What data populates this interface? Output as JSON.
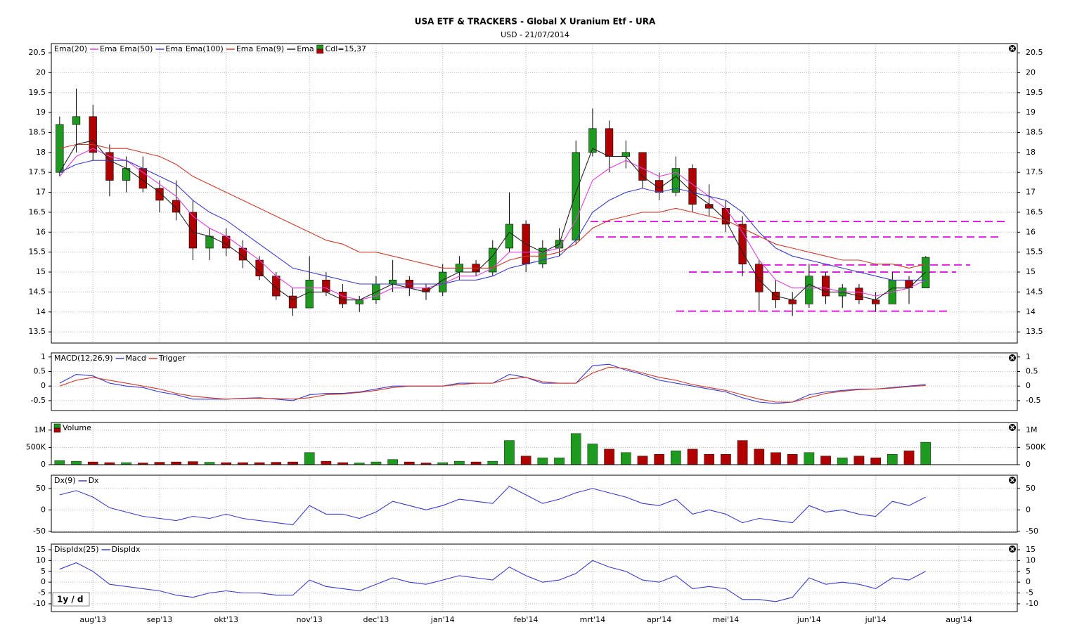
{
  "title": "USA ETF & TRACKERS - Global X Uranium Etf - URA",
  "subtitle": "USD - 21/07/2014",
  "period": "1y / d",
  "chart_data": [
    {
      "type": "candlestick",
      "categories": [
        null,
        null,
        "aug'13",
        null,
        null,
        null,
        "sep'13",
        null,
        null,
        null,
        "okt'13",
        null,
        null,
        null,
        null,
        "nov'13",
        null,
        null,
        null,
        "dec'13",
        null,
        null,
        null,
        "jan'14",
        null,
        null,
        null,
        null,
        "feb'14",
        null,
        null,
        null,
        "mrt'14",
        null,
        null,
        null,
        "apr'14",
        null,
        null,
        null,
        "mei'14",
        null,
        null,
        null,
        null,
        "jun'14",
        null,
        null,
        null,
        "jul'14",
        null,
        null,
        null,
        null,
        "aug'14",
        null,
        null,
        null
      ],
      "ylim": [
        13.22,
        20.73
      ],
      "yticks": [
        13.5,
        14,
        14.5,
        15,
        15.5,
        16,
        16.5,
        17,
        17.5,
        18,
        18.5,
        19,
        19.5,
        20,
        20.5
      ],
      "grid": true,
      "up_color": "#1e9a1e",
      "down_color": "#b00000",
      "levels": [
        16.27,
        15.88,
        15.18,
        15.0,
        14.02
      ],
      "level_color": "#e020e0",
      "ohlc": {
        "name": "Cdl=15,37",
        "open": [
          17.5,
          18.7,
          18.9,
          18.0,
          17.3,
          17.6,
          17.1,
          16.8,
          16.5,
          15.6,
          15.9,
          15.6,
          15.3,
          14.9,
          14.4,
          14.1,
          14.8,
          14.5,
          14.2,
          14.3,
          14.7,
          14.8,
          14.6,
          14.5,
          15.0,
          15.2,
          15.0,
          15.6,
          16.2,
          15.2,
          15.6,
          15.8,
          18.0,
          18.6,
          17.9,
          18.0,
          17.3,
          17.0,
          17.6,
          16.7,
          16.6,
          16.2,
          15.2,
          14.5,
          14.3,
          14.2,
          14.9,
          14.4,
          14.6,
          14.3,
          14.2,
          14.8,
          14.6,
          null,
          null,
          null,
          null,
          null
        ],
        "high": [
          18.9,
          19.6,
          19.2,
          18.2,
          17.9,
          17.9,
          17.3,
          17.3,
          16.8,
          16.1,
          16.1,
          15.8,
          15.4,
          15.0,
          14.6,
          15.4,
          15.0,
          14.7,
          14.4,
          14.9,
          15.3,
          14.9,
          14.7,
          15.2,
          15.4,
          15.3,
          15.8,
          17.0,
          16.3,
          15.8,
          16.1,
          18.3,
          19.1,
          18.8,
          18.3,
          18.0,
          17.5,
          17.9,
          17.7,
          17.2,
          16.8,
          16.4,
          15.3,
          14.8,
          14.5,
          15.2,
          15.0,
          14.7,
          14.7,
          14.5,
          15.0,
          14.9,
          15.4,
          null,
          null,
          null,
          null,
          null
        ],
        "low": [
          17.4,
          18.0,
          17.8,
          16.9,
          17.0,
          17.0,
          16.5,
          16.3,
          15.3,
          15.3,
          15.4,
          15.1,
          14.8,
          14.3,
          13.9,
          14.1,
          14.4,
          14.1,
          14.0,
          14.2,
          14.5,
          14.4,
          14.3,
          14.4,
          14.8,
          14.9,
          14.9,
          15.5,
          15.0,
          15.1,
          15.4,
          15.7,
          17.9,
          17.5,
          17.6,
          17.1,
          16.8,
          16.9,
          16.5,
          16.4,
          16.0,
          14.9,
          14.0,
          14.1,
          13.9,
          14.1,
          14.2,
          14.1,
          14.2,
          14.0,
          14.2,
          14.2,
          14.6,
          null,
          null,
          null,
          null,
          null
        ],
        "close": [
          18.7,
          18.9,
          18.0,
          17.3,
          17.6,
          17.1,
          16.8,
          16.5,
          15.6,
          15.9,
          15.6,
          15.3,
          14.9,
          14.4,
          14.1,
          14.8,
          14.5,
          14.2,
          14.3,
          14.7,
          14.8,
          14.6,
          14.5,
          15.0,
          15.2,
          15.0,
          15.6,
          16.2,
          15.2,
          15.6,
          15.8,
          18.0,
          18.6,
          17.9,
          18.0,
          17.3,
          17.0,
          17.6,
          16.7,
          16.6,
          16.2,
          15.2,
          14.5,
          14.3,
          14.2,
          14.9,
          14.4,
          14.6,
          14.3,
          14.2,
          14.8,
          14.6,
          15.37,
          null,
          null,
          null,
          null,
          null
        ]
      },
      "series": [
        {
          "label": "Ema(20)",
          "name": "Ema",
          "color": "#e040e0",
          "values": [
            17.4,
            17.9,
            18.1,
            17.9,
            17.8,
            17.5,
            17.2,
            16.9,
            16.4,
            16.1,
            15.9,
            15.6,
            15.3,
            14.9,
            14.6,
            14.6,
            14.6,
            14.4,
            14.3,
            14.4,
            14.6,
            14.6,
            14.6,
            14.7,
            14.9,
            14.9,
            15.1,
            15.5,
            15.5,
            15.5,
            15.6,
            16.3,
            17.3,
            17.6,
            17.8,
            17.6,
            17.4,
            17.5,
            17.2,
            16.9,
            16.6,
            16.0,
            15.3,
            14.8,
            14.6,
            14.6,
            14.6,
            14.5,
            14.5,
            14.4,
            14.5,
            14.6,
            14.8,
            null,
            null,
            null,
            null,
            null
          ]
        },
        {
          "label": "Ema(50)",
          "name": "Ema",
          "color": "#3a3ad0",
          "values": [
            17.5,
            17.7,
            17.8,
            17.8,
            17.8,
            17.6,
            17.4,
            17.2,
            16.8,
            16.5,
            16.3,
            16.0,
            15.7,
            15.4,
            15.1,
            15.0,
            14.9,
            14.8,
            14.7,
            14.7,
            14.7,
            14.7,
            14.7,
            14.7,
            14.8,
            14.8,
            14.9,
            15.1,
            15.2,
            15.3,
            15.4,
            15.8,
            16.5,
            16.8,
            17.0,
            17.1,
            17.0,
            17.1,
            17.0,
            16.9,
            16.8,
            16.5,
            16.0,
            15.6,
            15.4,
            15.3,
            15.2,
            15.1,
            15.0,
            14.9,
            14.8,
            14.8,
            14.8,
            null,
            null,
            null,
            null,
            null
          ]
        },
        {
          "label": "Ema(100)",
          "name": "Ema",
          "color": "#d03a2a",
          "values": [
            18.1,
            18.2,
            18.2,
            18.1,
            18.1,
            18.0,
            17.9,
            17.7,
            17.4,
            17.2,
            17.0,
            16.8,
            16.6,
            16.4,
            16.2,
            16.0,
            15.8,
            15.7,
            15.5,
            15.5,
            15.4,
            15.3,
            15.2,
            15.1,
            15.1,
            15.1,
            15.1,
            15.3,
            15.4,
            15.4,
            15.5,
            15.7,
            16.1,
            16.3,
            16.4,
            16.5,
            16.5,
            16.6,
            16.5,
            16.4,
            16.3,
            16.1,
            15.9,
            15.7,
            15.6,
            15.5,
            15.4,
            15.3,
            15.3,
            15.2,
            15.2,
            15.1,
            15.2,
            null,
            null,
            null,
            null,
            null
          ]
        },
        {
          "label": "Ema(9)",
          "name": "Ema",
          "color": "#222222",
          "values": [
            17.5,
            18.2,
            18.3,
            17.8,
            17.6,
            17.3,
            17.0,
            16.6,
            16.0,
            15.9,
            15.7,
            15.4,
            15.0,
            14.6,
            14.3,
            14.5,
            14.5,
            14.3,
            14.3,
            14.5,
            14.7,
            14.6,
            14.5,
            14.8,
            15.0,
            15.0,
            15.4,
            16.0,
            15.7,
            15.5,
            15.7,
            17.0,
            18.1,
            17.9,
            17.9,
            17.4,
            17.1,
            17.4,
            17.0,
            16.7,
            16.3,
            15.5,
            14.8,
            14.4,
            14.3,
            14.7,
            14.5,
            14.5,
            14.4,
            14.3,
            14.6,
            14.6,
            15.0,
            null,
            null,
            null,
            null,
            null
          ]
        }
      ]
    },
    {
      "type": "line",
      "label": "MACD(12,26,9)",
      "ylim": [
        -0.84,
        1.14
      ],
      "yticks": [
        -0.5,
        0,
        0.5,
        1
      ],
      "grid": true,
      "series": [
        {
          "name": "Macd",
          "color": "#3a3ad0",
          "values": [
            0.1,
            0.4,
            0.35,
            0.1,
            0.0,
            -0.05,
            -0.2,
            -0.3,
            -0.45,
            -0.45,
            -0.45,
            -0.42,
            -0.4,
            -0.45,
            -0.5,
            -0.3,
            -0.25,
            -0.25,
            -0.2,
            -0.1,
            0.0,
            0.0,
            0.0,
            0.0,
            0.1,
            0.1,
            0.1,
            0.4,
            0.3,
            0.1,
            0.1,
            0.1,
            0.7,
            0.75,
            0.55,
            0.4,
            0.2,
            0.1,
            0.0,
            -0.1,
            -0.2,
            -0.4,
            -0.55,
            -0.6,
            -0.55,
            -0.3,
            -0.2,
            -0.15,
            -0.1,
            -0.1,
            -0.05,
            0.0,
            0.05,
            null,
            null,
            null,
            null,
            null
          ]
        },
        {
          "name": "Trigger",
          "color": "#d03a2a",
          "values": [
            0.0,
            0.2,
            0.3,
            0.2,
            0.1,
            0.0,
            -0.1,
            -0.25,
            -0.35,
            -0.4,
            -0.45,
            -0.43,
            -0.42,
            -0.43,
            -0.45,
            -0.4,
            -0.3,
            -0.27,
            -0.22,
            -0.15,
            -0.05,
            0.0,
            0.0,
            0.0,
            0.05,
            0.1,
            0.1,
            0.25,
            0.3,
            0.15,
            0.1,
            0.1,
            0.45,
            0.65,
            0.6,
            0.45,
            0.3,
            0.2,
            0.05,
            -0.05,
            -0.15,
            -0.3,
            -0.45,
            -0.55,
            -0.55,
            -0.4,
            -0.25,
            -0.18,
            -0.12,
            -0.1,
            -0.07,
            -0.02,
            0.02,
            null,
            null,
            null,
            null,
            null
          ]
        }
      ]
    },
    {
      "type": "bar",
      "name": "Volume",
      "ylim": [
        0,
        1220000
      ],
      "yticks": [
        0,
        {
          "value": 500000,
          "label": "500K"
        },
        {
          "value": 1000000,
          "label": "1M"
        }
      ],
      "grid": true,
      "values": [
        120000,
        100000,
        80000,
        60000,
        60000,
        50000,
        70000,
        80000,
        90000,
        70000,
        60000,
        60000,
        60000,
        70000,
        80000,
        350000,
        100000,
        60000,
        50000,
        80000,
        150000,
        80000,
        50000,
        60000,
        100000,
        80000,
        100000,
        700000,
        250000,
        200000,
        200000,
        900000,
        600000,
        450000,
        350000,
        250000,
        300000,
        400000,
        450000,
        300000,
        300000,
        700000,
        450000,
        350000,
        300000,
        350000,
        250000,
        200000,
        250000,
        200000,
        300000,
        400000,
        650000,
        null,
        null,
        null,
        null,
        null
      ]
    },
    {
      "type": "line",
      "label": "Dx(9)",
      "ylim": [
        -52,
        81
      ],
      "yticks": [
        -50,
        0,
        50
      ],
      "grid": true,
      "series": [
        {
          "name": "Dx",
          "color": "#3a3ad0",
          "values": [
            35,
            45,
            30,
            5,
            -5,
            -15,
            -20,
            -25,
            -15,
            -20,
            -10,
            -20,
            -25,
            -30,
            -35,
            10,
            -10,
            -10,
            -20,
            -5,
            20,
            10,
            0,
            10,
            25,
            20,
            15,
            55,
            35,
            15,
            25,
            40,
            50,
            40,
            30,
            15,
            10,
            25,
            -10,
            0,
            -10,
            -30,
            -20,
            -25,
            -30,
            10,
            -5,
            0,
            -10,
            -15,
            20,
            10,
            30,
            null,
            null,
            null,
            null,
            null
          ]
        }
      ]
    },
    {
      "type": "line",
      "label": "DispIdx(25)",
      "ylim": [
        -13.6,
        17.6
      ],
      "yticks": [
        -10,
        -5,
        0,
        5,
        10,
        15
      ],
      "grid": true,
      "series": [
        {
          "name": "DispIdx",
          "color": "#3a3ad0",
          "values": [
            6,
            9,
            5,
            -1,
            -2,
            -3,
            -4,
            -6,
            -7,
            -5,
            -4,
            -5,
            -5,
            -6,
            -6,
            1,
            -2,
            -3,
            -4,
            -1,
            2,
            0,
            -1,
            1,
            3,
            2,
            1,
            7,
            3,
            0,
            1,
            4,
            10,
            7,
            5,
            1,
            0,
            3,
            -3,
            -2,
            -3,
            -8,
            -8,
            -9,
            -7,
            2,
            -1,
            0,
            -1,
            -3,
            2,
            1,
            5,
            null,
            null,
            null,
            null,
            null
          ]
        }
      ]
    }
  ]
}
